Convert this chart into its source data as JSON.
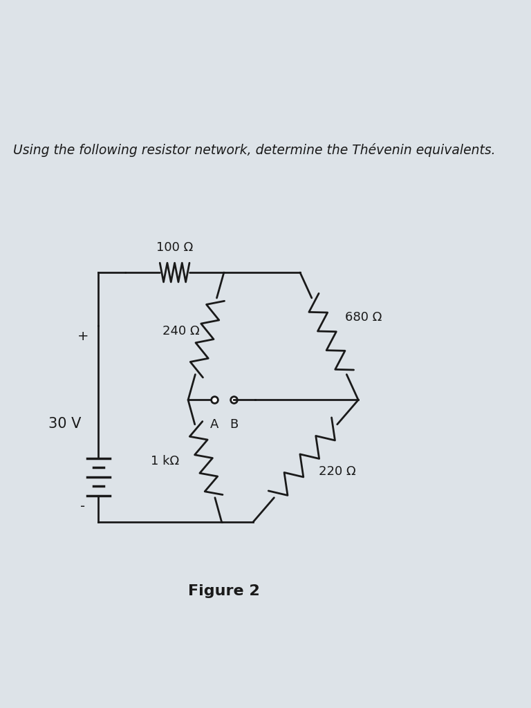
{
  "title": "Figure 2",
  "problem_text": "Using the following resistor network, determine the Thévenin equivalents.",
  "background_color": "#f0f0f0",
  "paper_color": "#e8eaec",
  "line_color": "#1a1a1a",
  "resistors": {
    "R100": {
      "label": "100 Ω",
      "type": "horizontal"
    },
    "R240": {
      "label": "240 Ω",
      "type": "diagonal"
    },
    "R680": {
      "label": "680 Ω",
      "type": "diagonal"
    },
    "R1k": {
      "label": "1 kΩ",
      "type": "diagonal"
    },
    "R220": {
      "label": "220 Ω",
      "type": "diagonal"
    }
  },
  "voltage_source": {
    "label": "30 V",
    "polarity_plus": "+",
    "polarity_minus": "-"
  },
  "terminals": {
    "A": "A",
    "B": "B"
  }
}
